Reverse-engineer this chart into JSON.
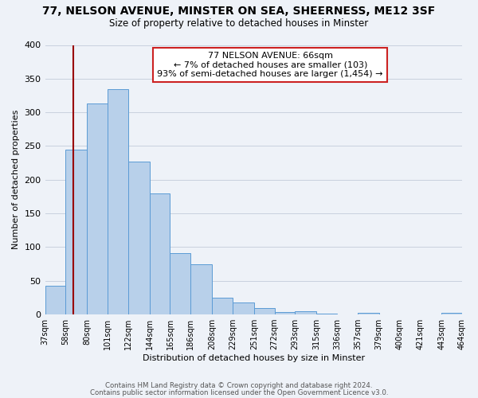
{
  "title": "77, NELSON AVENUE, MINSTER ON SEA, SHEERNESS, ME12 3SF",
  "subtitle": "Size of property relative to detached houses in Minster",
  "xlabel": "Distribution of detached houses by size in Minster",
  "ylabel": "Number of detached properties",
  "bin_edges": [
    37,
    58,
    80,
    101,
    122,
    144,
    165,
    186,
    208,
    229,
    251,
    272,
    293,
    315,
    336,
    357,
    379,
    400,
    421,
    443,
    464
  ],
  "bin_labels": [
    "37sqm",
    "58sqm",
    "80sqm",
    "101sqm",
    "122sqm",
    "144sqm",
    "165sqm",
    "186sqm",
    "208sqm",
    "229sqm",
    "251sqm",
    "272sqm",
    "293sqm",
    "315sqm",
    "336sqm",
    "357sqm",
    "379sqm",
    "400sqm",
    "421sqm",
    "443sqm",
    "464sqm"
  ],
  "counts": [
    43,
    245,
    313,
    335,
    227,
    180,
    91,
    75,
    25,
    18,
    10,
    4,
    5,
    1,
    0,
    2,
    0,
    0,
    0,
    2
  ],
  "bar_color": "#b8d0ea",
  "bar_edge_color": "#5b9bd5",
  "vline_x": 66,
  "vline_color": "#990000",
  "annotation_title": "77 NELSON AVENUE: 66sqm",
  "annotation_line1": "← 7% of detached houses are smaller (103)",
  "annotation_line2": "93% of semi-detached houses are larger (1,454) →",
  "annotation_box_facecolor": "#ffffff",
  "annotation_box_edge": "#cc2222",
  "ylim": [
    0,
    400
  ],
  "yticks": [
    0,
    50,
    100,
    150,
    200,
    250,
    300,
    350,
    400
  ],
  "footer1": "Contains HM Land Registry data © Crown copyright and database right 2024.",
  "footer2": "Contains public sector information licensed under the Open Government Licence v3.0.",
  "background_color": "#eef2f8",
  "plot_bg_color": "#eef2f8",
  "grid_color": "#c8d0de"
}
